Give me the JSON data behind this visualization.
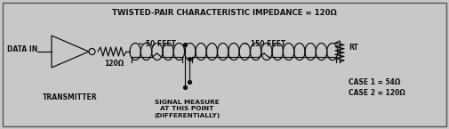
{
  "bg_color": "#c8c8c8",
  "border_color": "#555555",
  "line_color": "#111111",
  "title_text": "TWISTED-PAIR CHARACTERISTIC IMPEDANCE = 120Ω",
  "label_data_in": "DATA IN",
  "label_transmitter": "TRANSMITTER",
  "label_120": "120Ω",
  "label_50ft": "~ 50 FEET",
  "label_150ft": "~ 150 FEET",
  "label_signal": "SIGNAL MEASURE\nAT THIS POINT\n(DIFFERENTIALLY)",
  "label_case1": "CASE 1 = 54Ω",
  "label_case2": "CASE 2 = 120Ω",
  "label_rt": "RT",
  "font_family": "DejaVu Sans"
}
